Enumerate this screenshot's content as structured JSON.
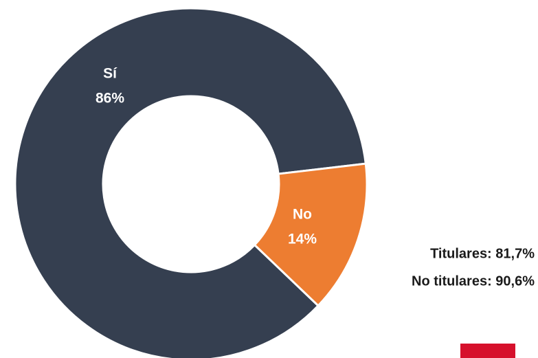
{
  "chart_data": {
    "type": "donut",
    "categories": [
      "Sí",
      "No"
    ],
    "values": [
      86,
      14
    ],
    "value_labels": [
      "86%",
      "14%"
    ],
    "colors": [
      "#353f50",
      "#ed7d31"
    ],
    "annotations": [
      "Titulares: 81,7%",
      "No titulares: 90,6%"
    ]
  }
}
